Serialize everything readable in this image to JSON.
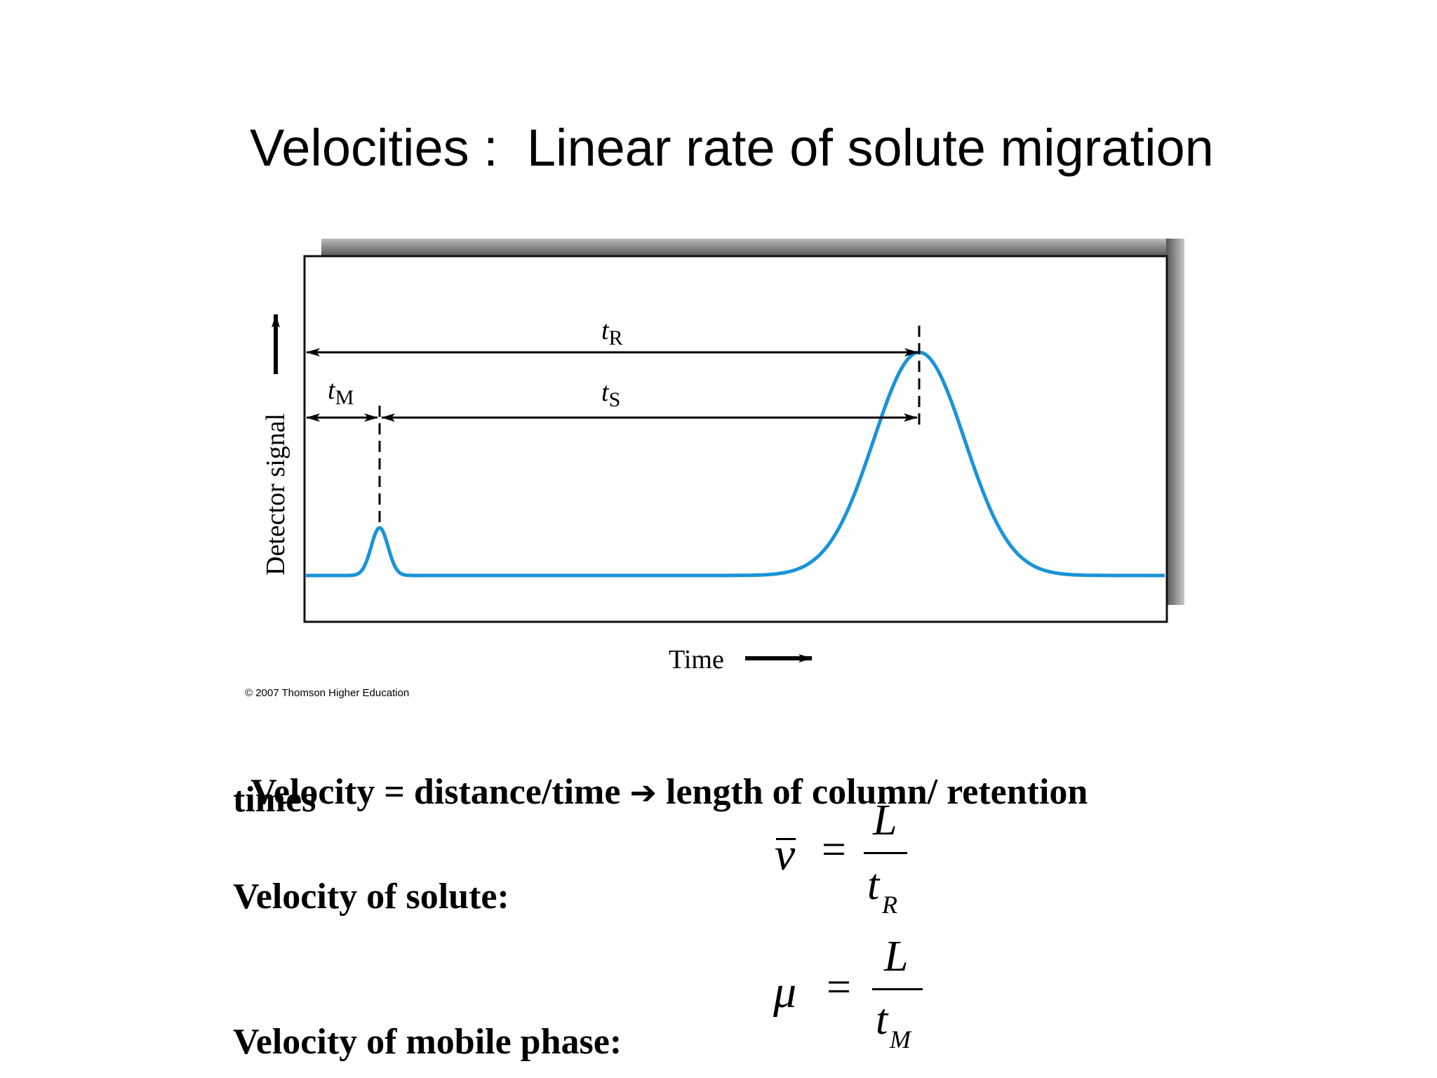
{
  "slide": {
    "title": "Velocities :  Linear rate of solute migration",
    "copyright": "© 2007 Thomson Higher Education",
    "velocity_line_1_a": "Velocity = distance/time ",
    "velocity_line_1_arrow": "➔",
    "velocity_line_1_b": " length of column/ retention",
    "velocity_line_2": "times",
    "solute_label": "Velocity of solute:",
    "mobile_label": "Velocity of mobile phase:"
  },
  "equations": {
    "solute": {
      "lhs": "v",
      "equals": "=",
      "numerator": "L",
      "denominator": "t",
      "subscript": "R"
    },
    "mobile": {
      "lhs": "μ",
      "equals": "=",
      "numerator": "L",
      "denominator": "t",
      "subscript": "M"
    }
  },
  "figure": {
    "ylabel": "Detector signal",
    "xlabel": "Time",
    "tR": {
      "main": "t",
      "sub": "R"
    },
    "tM": {
      "main": "t",
      "sub": "M"
    },
    "tS": {
      "main": "t",
      "sub": "S"
    },
    "trace_color": "#1a93d8",
    "shadow_color": "#555555"
  }
}
